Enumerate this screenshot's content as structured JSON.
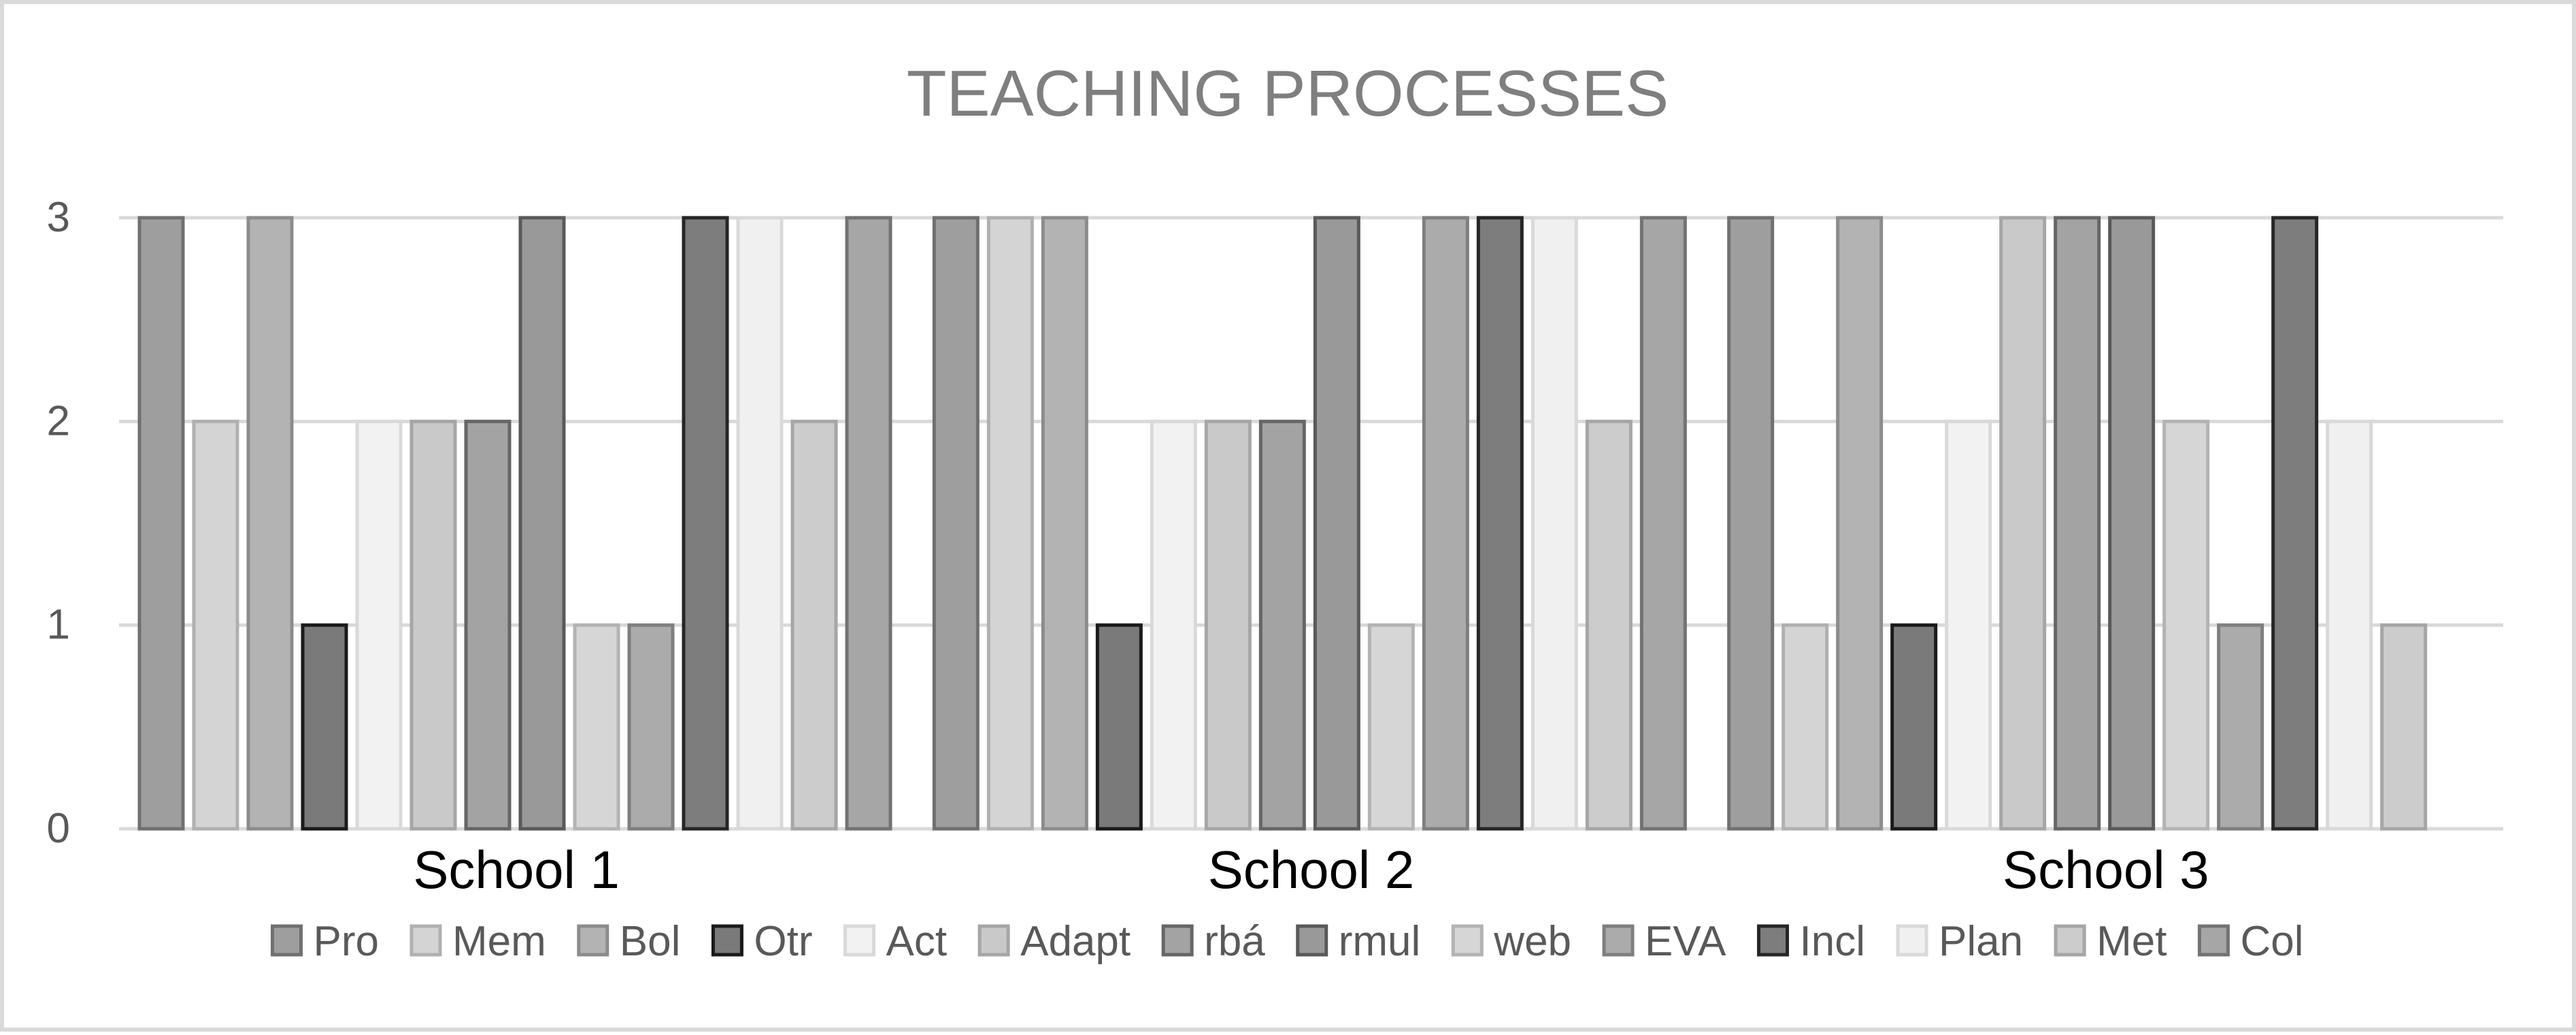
{
  "colors": {
    "frame": "#d9d9d9",
    "gridline": "#d9d9d9",
    "title": "#7f7f7f",
    "axis_text": "#595959",
    "category_text": "#000000"
  },
  "chart_data": {
    "type": "bar",
    "title": "TEACHING PROCESSES",
    "xlabel": "",
    "ylabel": "",
    "ylim": [
      0,
      3
    ],
    "yticks": [
      "0",
      "1",
      "2",
      "3"
    ],
    "grid": true,
    "legend_position": "bottom",
    "categories": [
      "School 1",
      "School 2",
      "School 3"
    ],
    "series": [
      {
        "name": "Pro",
        "values": [
          3,
          3,
          3
        ],
        "fill": "#9e9e9e",
        "stroke": "#707070"
      },
      {
        "name": "Mem",
        "values": [
          2,
          3,
          1
        ],
        "fill": "#d4d4d4",
        "stroke": "#b0b0b0"
      },
      {
        "name": "Bol",
        "values": [
          3,
          3,
          3
        ],
        "fill": "#b3b3b3",
        "stroke": "#8c8c8c"
      },
      {
        "name": "Otr",
        "values": [
          1,
          1,
          1
        ],
        "fill": "#7a7a7a",
        "stroke": "#1a1a1a"
      },
      {
        "name": "Act",
        "values": [
          2,
          2,
          2
        ],
        "fill": "#f2f2f2",
        "stroke": "#d9d9d9"
      },
      {
        "name": "Adapt",
        "values": [
          2,
          2,
          3
        ],
        "fill": "#c9c9c9",
        "stroke": "#a6a6a6"
      },
      {
        "name": "rbá",
        "values": [
          2,
          2,
          3
        ],
        "fill": "#a3a3a3",
        "stroke": "#666666"
      },
      {
        "name": "rmul",
        "values": [
          3,
          3,
          3
        ],
        "fill": "#999999",
        "stroke": "#595959"
      },
      {
        "name": "web",
        "values": [
          1,
          1,
          2
        ],
        "fill": "#d6d6d6",
        "stroke": "#b3b3b3"
      },
      {
        "name": "EVA",
        "values": [
          1,
          3,
          1
        ],
        "fill": "#ababab",
        "stroke": "#7f7f7f"
      },
      {
        "name": "Incl",
        "values": [
          3,
          3,
          3
        ],
        "fill": "#7d7d7d",
        "stroke": "#262626"
      },
      {
        "name": "Plan",
        "values": [
          3,
          3,
          2
        ],
        "fill": "#f0f0f0",
        "stroke": "#d9d9d9"
      },
      {
        "name": "Met",
        "values": [
          2,
          2,
          1
        ],
        "fill": "#cccccc",
        "stroke": "#a6a6a6"
      },
      {
        "name": "Col",
        "values": [
          3,
          3,
          0
        ],
        "fill": "#a6a6a6",
        "stroke": "#737373"
      }
    ]
  }
}
